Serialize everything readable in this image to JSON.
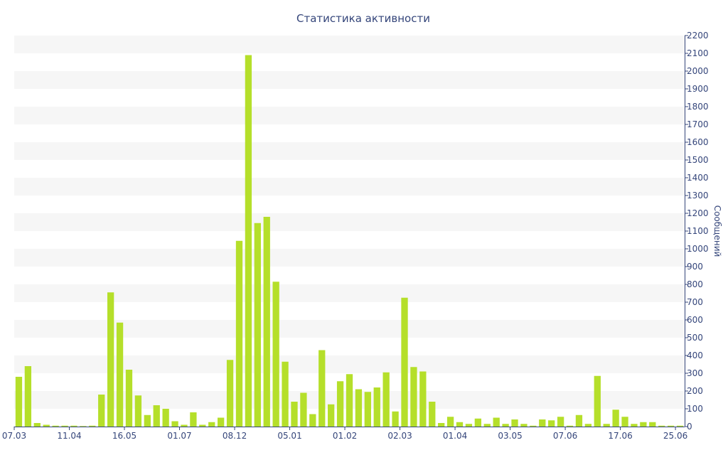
{
  "chart_data": {
    "type": "bar",
    "title": "Статистика активности",
    "xlabel": "",
    "ylabel": "Сообщений",
    "ylim": [
      0,
      2200
    ],
    "y_ticks": [
      0,
      100,
      200,
      300,
      400,
      500,
      600,
      700,
      800,
      900,
      1000,
      1100,
      1200,
      1300,
      1400,
      1500,
      1600,
      1700,
      1800,
      1900,
      2000,
      2100,
      2200
    ],
    "y_axis_position": "right",
    "x_tick_labels": [
      {
        "label": "07.03",
        "index": 0
      },
      {
        "label": "11.04",
        "index": 6
      },
      {
        "label": "16.05",
        "index": 12
      },
      {
        "label": "01.07",
        "index": 18
      },
      {
        "label": "08.12",
        "index": 24
      },
      {
        "label": "05.01",
        "index": 30
      },
      {
        "label": "01.02",
        "index": 36
      },
      {
        "label": "02.03",
        "index": 42
      },
      {
        "label": "01.04",
        "index": 48
      },
      {
        "label": "03.05",
        "index": 54
      },
      {
        "label": "07.06",
        "index": 60
      },
      {
        "label": "17.06",
        "index": 66
      },
      {
        "label": "25.06",
        "index": 72
      }
    ],
    "bar_color": "#b5df2a",
    "grid_band_color": "#f6f6f6",
    "axis_color": "#34457a",
    "values": [
      280,
      340,
      20,
      10,
      5,
      5,
      5,
      3,
      5,
      180,
      755,
      585,
      320,
      175,
      65,
      120,
      100,
      30,
      10,
      80,
      10,
      25,
      50,
      375,
      1045,
      2090,
      1145,
      1180,
      815,
      365,
      140,
      190,
      70,
      430,
      125,
      255,
      295,
      210,
      195,
      220,
      305,
      85,
      725,
      335,
      310,
      140,
      20,
      55,
      25,
      15,
      45,
      15,
      50,
      15,
      40,
      15,
      5,
      40,
      35,
      55,
      5,
      65,
      15,
      285,
      15,
      95,
      55,
      15,
      25,
      25,
      5,
      5,
      5
    ]
  }
}
